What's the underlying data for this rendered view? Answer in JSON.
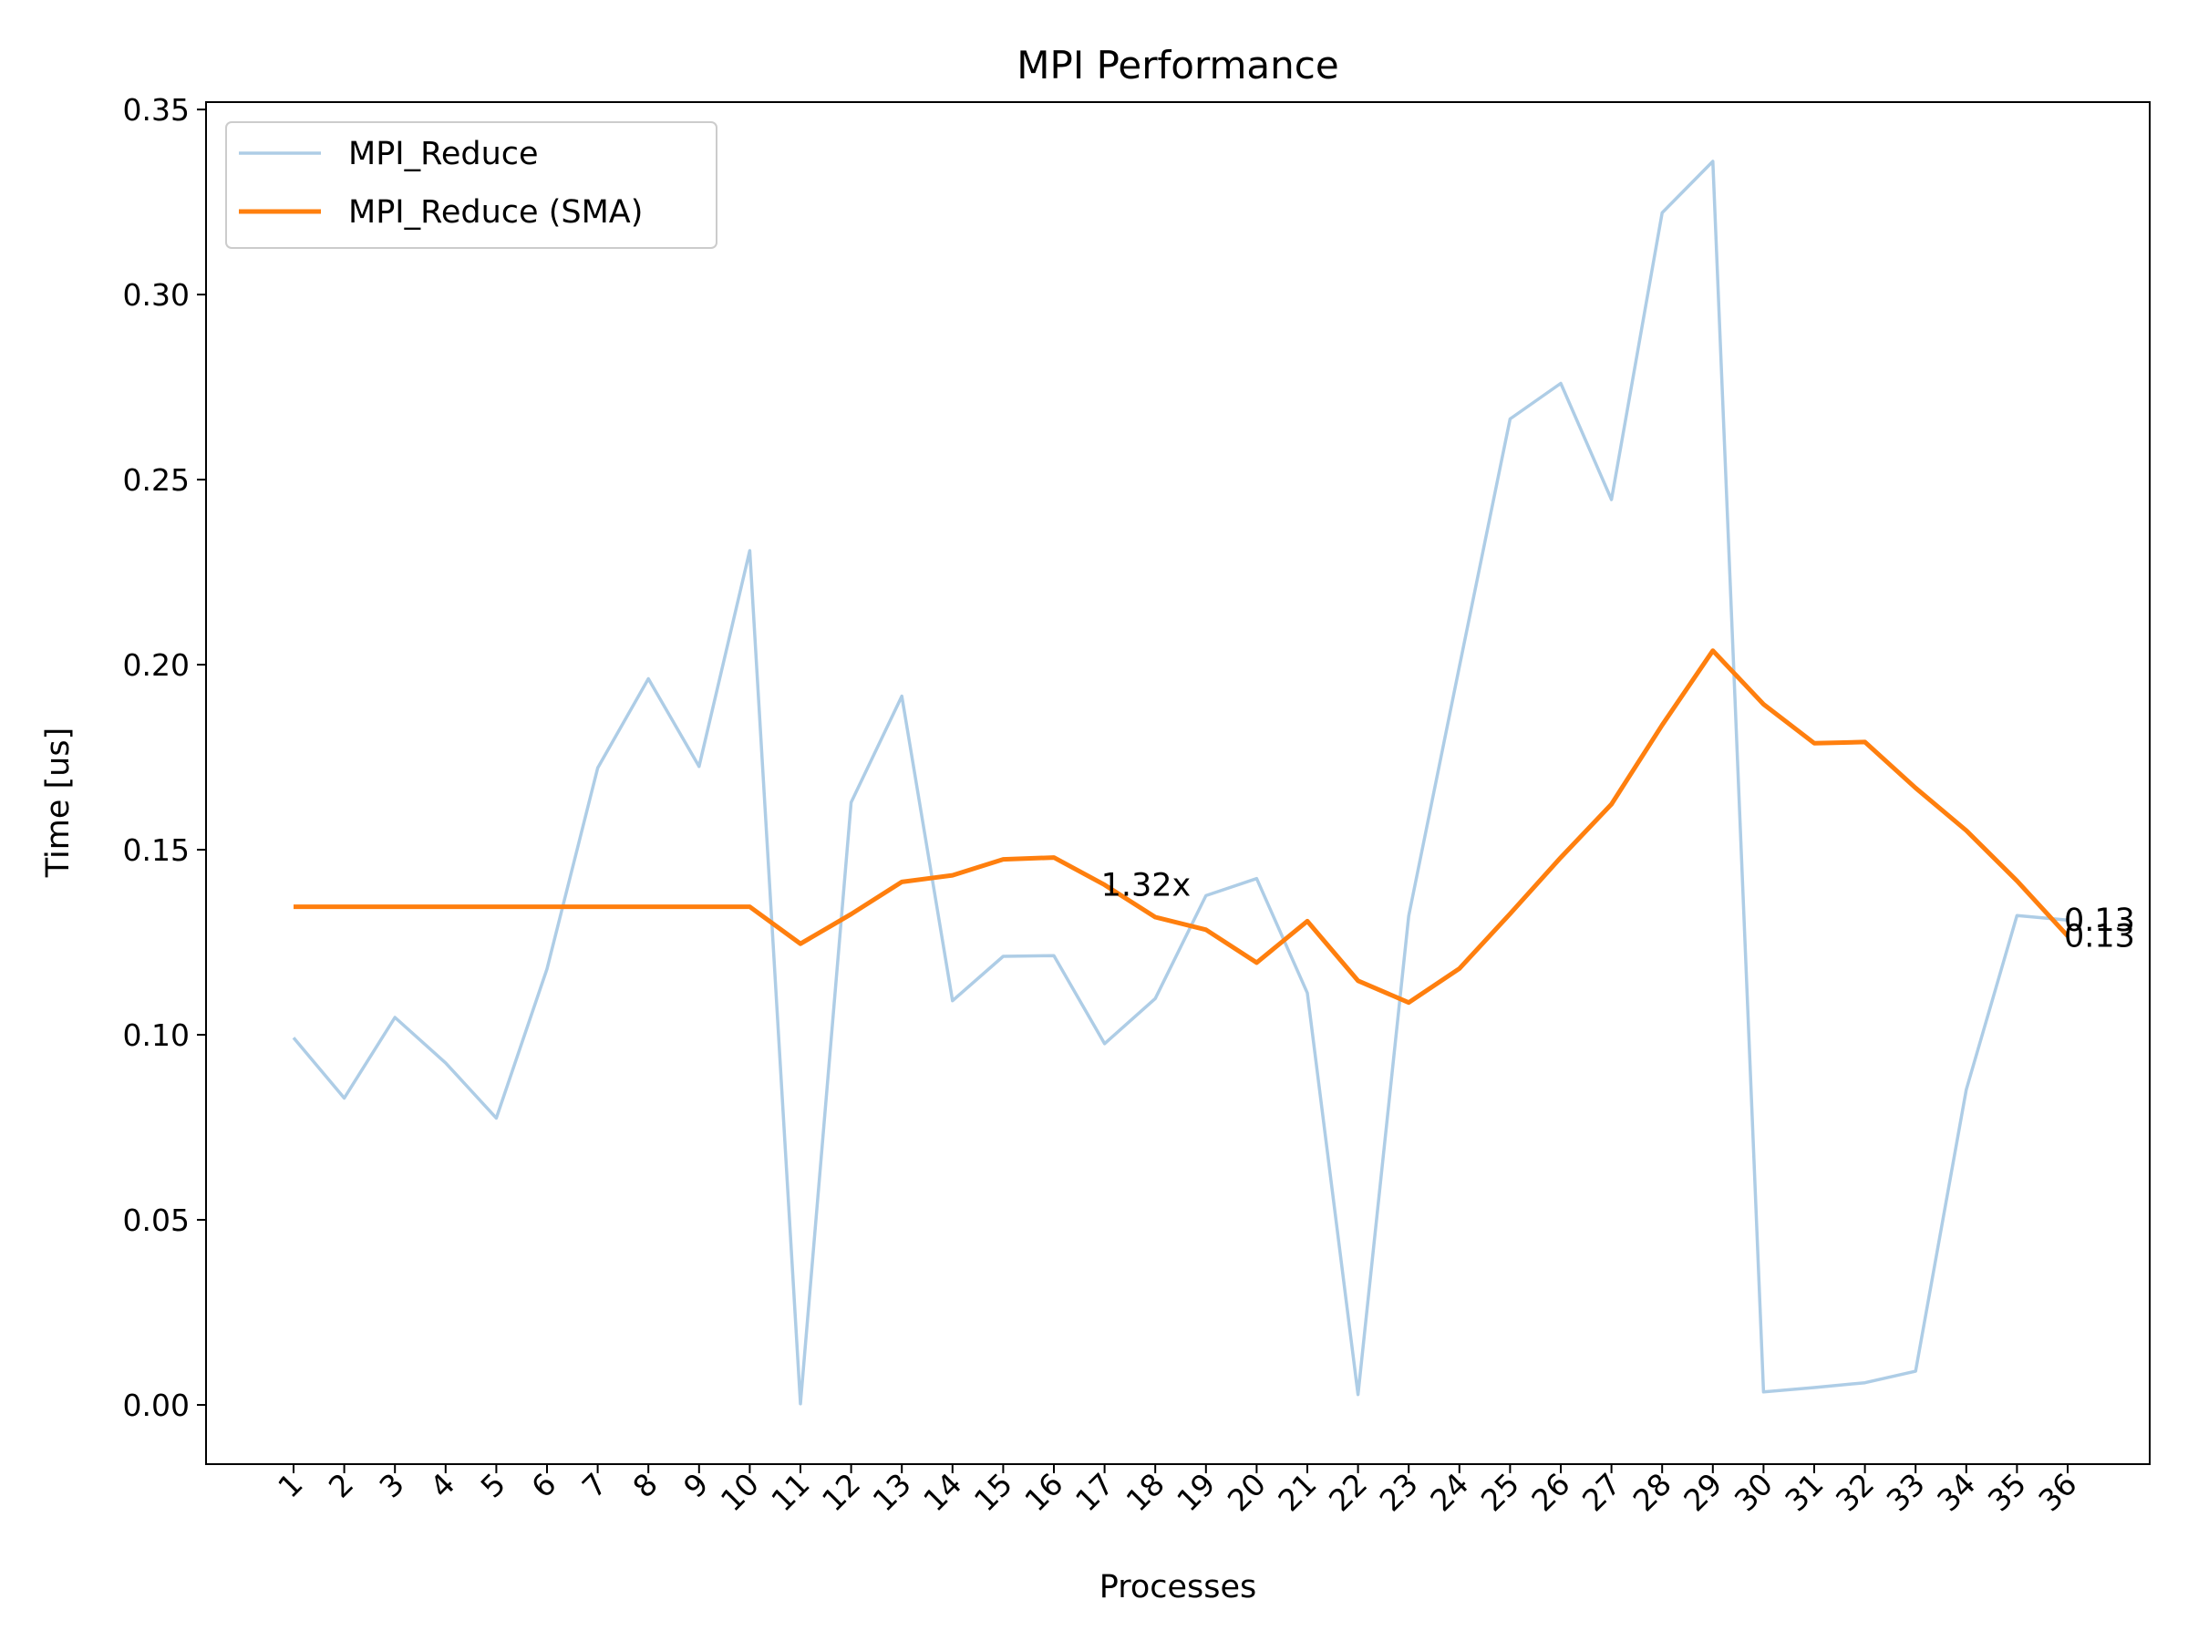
{
  "chart_data": {
    "type": "line",
    "title": "MPI Performance",
    "xlabel": "Processes",
    "ylabel": "Time [us]",
    "categories": [
      "1",
      "2",
      "3",
      "4",
      "5",
      "6",
      "7",
      "8",
      "9",
      "10",
      "11",
      "12",
      "13",
      "14",
      "15",
      "16",
      "17",
      "18",
      "19",
      "20",
      "21",
      "22",
      "23",
      "24",
      "25",
      "26",
      "27",
      "28",
      "29",
      "30",
      "31",
      "32",
      "33",
      "34",
      "35",
      "36"
    ],
    "ylim": [
      -0.016,
      0.352
    ],
    "yticks": [
      "0.00",
      "0.05",
      "0.10",
      "0.15",
      "0.20",
      "0.25",
      "0.30",
      "0.35"
    ],
    "grid": false,
    "legend_position": "upper left",
    "series": [
      {
        "name": "MPI_Reduce",
        "color": "#aecde6",
        "values": [
          0.0992,
          0.0829,
          0.1047,
          0.0924,
          0.0775,
          0.1178,
          0.1721,
          0.1962,
          0.1725,
          0.2308,
          0.0003,
          0.1628,
          0.1915,
          0.1092,
          0.1212,
          0.1214,
          0.0976,
          0.1098,
          0.1376,
          0.1422,
          0.1113,
          0.0028,
          0.1321,
          0.1995,
          0.2664,
          0.276,
          0.2446,
          0.3221,
          0.336,
          0.0035,
          0.0047,
          0.006,
          0.0091,
          0.0852,
          0.1322,
          0.131
        ]
      },
      {
        "name": "MPI_Reduce (SMA)",
        "color": "#ff7f0e",
        "values": [
          0.1346,
          0.1346,
          0.1346,
          0.1346,
          0.1346,
          0.1346,
          0.1346,
          0.1346,
          0.1346,
          0.1346,
          0.1246,
          0.1326,
          0.1413,
          0.1431,
          0.1474,
          0.1479,
          0.1405,
          0.1318,
          0.1284,
          0.1195,
          0.1307,
          0.1146,
          0.1087,
          0.1179,
          0.1327,
          0.1479,
          0.1623,
          0.1837,
          0.2038,
          0.1893,
          0.1788,
          0.1791,
          0.1667,
          0.1552,
          0.1416,
          0.1267
        ]
      }
    ],
    "annotations": [
      {
        "text": "1.32x",
        "x": "17",
        "y": 0.1405
      },
      {
        "text": "0.13",
        "x": "36",
        "y": 0.131
      },
      {
        "text": "0.13",
        "x": "36",
        "y": 0.1267
      }
    ]
  }
}
